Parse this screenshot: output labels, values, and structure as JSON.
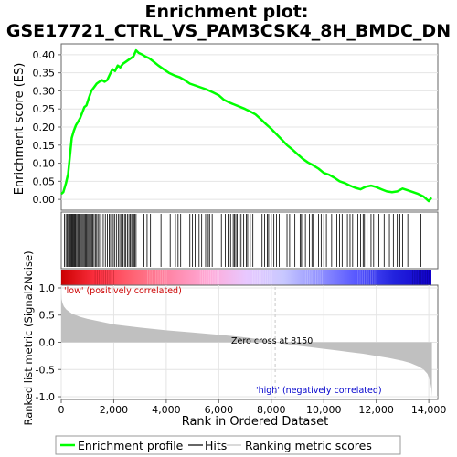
{
  "title": {
    "line1": "Enrichment plot:",
    "line2": "GSE17721_CTRL_VS_PAM3CSK4_8H_BMDC_DN"
  },
  "colors": {
    "enrichment_line": "#00ff00",
    "hits": "#000000",
    "ranking_area": "#c0c0c0",
    "zero_cross_line": "#c8c8c8",
    "grid": "#e4e4e4",
    "positive_label": "#cc0000",
    "negative_label": "#0000cc"
  },
  "chart_data": [
    {
      "type": "line",
      "name": "enrichment-profile",
      "ylabel": "Enrichment score (ES)",
      "xlim": [
        0,
        14500
      ],
      "ylim": [
        -0.03,
        0.43
      ],
      "yticks": [
        0.0,
        0.05,
        0.1,
        0.15,
        0.2,
        0.25,
        0.3,
        0.35,
        0.4
      ],
      "ytick_labels": [
        "0.00",
        "0.05",
        "0.10",
        "0.15",
        "0.20",
        "0.25",
        "0.30",
        "0.35",
        "0.40"
      ],
      "grid": true,
      "x": [
        0,
        80,
        180,
        260,
        330,
        400,
        480,
        560,
        640,
        720,
        800,
        880,
        960,
        1050,
        1150,
        1250,
        1350,
        1450,
        1550,
        1650,
        1750,
        1850,
        1950,
        2050,
        2150,
        2250,
        2350,
        2450,
        2550,
        2650,
        2750,
        2850,
        2950,
        3100,
        3200,
        3350,
        3500,
        3700,
        3900,
        4100,
        4300,
        4500,
        4700,
        4900,
        5100,
        5300,
        5500,
        5650,
        5800,
        6000,
        6200,
        6400,
        6600,
        6800,
        7000,
        7200,
        7400,
        7600,
        7800,
        8000,
        8200,
        8400,
        8600,
        8800,
        9000,
        9200,
        9400,
        9600,
        9800,
        10000,
        10200,
        10400,
        10600,
        10800,
        11000,
        11200,
        11400,
        11600,
        11800,
        12000,
        12200,
        12400,
        12600,
        12800,
        13000,
        13200,
        13400,
        13600,
        13800,
        14000,
        14100
      ],
      "y": [
        0.015,
        0.02,
        0.045,
        0.07,
        0.12,
        0.17,
        0.19,
        0.205,
        0.215,
        0.225,
        0.24,
        0.255,
        0.26,
        0.28,
        0.3,
        0.31,
        0.32,
        0.325,
        0.33,
        0.325,
        0.33,
        0.345,
        0.36,
        0.355,
        0.37,
        0.365,
        0.375,
        0.38,
        0.385,
        0.39,
        0.395,
        0.412,
        0.405,
        0.4,
        0.395,
        0.39,
        0.382,
        0.37,
        0.36,
        0.35,
        0.343,
        0.338,
        0.33,
        0.32,
        0.315,
        0.31,
        0.305,
        0.3,
        0.295,
        0.288,
        0.275,
        0.268,
        0.262,
        0.256,
        0.25,
        0.243,
        0.235,
        0.222,
        0.208,
        0.195,
        0.18,
        0.165,
        0.15,
        0.138,
        0.125,
        0.112,
        0.102,
        0.094,
        0.085,
        0.073,
        0.068,
        0.06,
        0.05,
        0.045,
        0.038,
        0.032,
        0.028,
        0.035,
        0.038,
        0.034,
        0.028,
        0.022,
        0.02,
        0.022,
        0.03,
        0.025,
        0.02,
        0.015,
        0.008,
        -0.005,
        0.005
      ]
    },
    {
      "type": "scatter",
      "name": "hits",
      "ylim": [
        0,
        1
      ],
      "x": [
        120,
        180,
        230,
        270,
        310,
        345,
        380,
        410,
        440,
        470,
        500,
        530,
        560,
        600,
        640,
        680,
        720,
        760,
        800,
        840,
        880,
        920,
        960,
        1000,
        1040,
        1080,
        1120,
        1160,
        1200,
        1250,
        1300,
        1350,
        1400,
        1460,
        1520,
        1600,
        1680,
        1760,
        1830,
        1880,
        1930,
        1980,
        2030,
        2100,
        2170,
        2230,
        2290,
        2350,
        2410,
        2460,
        2520,
        2580,
        2630,
        2680,
        2720,
        2760,
        2800,
        2850,
        3150,
        3270,
        3400,
        3800,
        4150,
        4350,
        4450,
        4550,
        4900,
        5000,
        5100,
        5250,
        5350,
        5500,
        5600,
        5650,
        5750,
        6100,
        6250,
        6350,
        6450,
        6550,
        6600,
        6650,
        6700,
        6780,
        6850,
        6950,
        7050,
        7100,
        7200,
        7300,
        7650,
        7750,
        7850,
        7900,
        8000,
        8100,
        8200,
        8300,
        8600,
        8700,
        8900,
        9100,
        9150,
        9200,
        9300,
        9450,
        9550,
        9600,
        9800,
        9900,
        10000,
        10100,
        10300,
        10500,
        10600,
        10700,
        10900,
        11000,
        11100,
        11300,
        11400,
        11500,
        11550,
        11650,
        11800,
        11900,
        12100,
        12300,
        12500,
        12650,
        12800,
        12900,
        13000,
        13200,
        13700,
        14050
      ]
    },
    {
      "type": "area",
      "name": "ranking-metric",
      "xlabel": "Rank in Ordered Dataset",
      "ylabel": "Ranked list metric (Signal2Noise)",
      "xlim": [
        0,
        14500
      ],
      "ylim": [
        -1.05,
        1.05
      ],
      "xticks": [
        0,
        2000,
        4000,
        6000,
        8000,
        10000,
        12000,
        14000
      ],
      "xtick_labels": [
        "0",
        "2,000",
        "4,000",
        "6,000",
        "8,000",
        "10,000",
        "12,000",
        "14,000"
      ],
      "yticks": [
        -1.0,
        -0.5,
        0.0,
        0.5,
        1.0
      ],
      "ytick_labels": [
        "-1.0",
        "-0.5",
        "0.0",
        "0.5",
        "1.0"
      ],
      "x": [
        0,
        10,
        50,
        100,
        200,
        400,
        700,
        1000,
        1500,
        2000,
        3000,
        4000,
        5000,
        6000,
        7000,
        7600,
        8000,
        8150,
        8500,
        9000,
        9500,
        10000,
        10500,
        11000,
        11500,
        12000,
        12500,
        13000,
        13300,
        13600,
        13800,
        13950,
        14050,
        14100,
        14120
      ],
      "y": [
        0.9,
        0.8,
        0.72,
        0.66,
        0.6,
        0.53,
        0.47,
        0.43,
        0.38,
        0.33,
        0.27,
        0.22,
        0.18,
        0.14,
        0.09,
        0.05,
        0.02,
        0.0,
        -0.03,
        -0.06,
        -0.09,
        -0.12,
        -0.15,
        -0.18,
        -0.21,
        -0.25,
        -0.29,
        -0.34,
        -0.38,
        -0.44,
        -0.5,
        -0.58,
        -0.72,
        -0.85,
        -1.0
      ]
    }
  ],
  "heatmap_bar": {
    "stops": [
      "#cc0000",
      "#ff3344",
      "#ff6677",
      "#ff88aa",
      "#ffaad8",
      "#e8c8ff",
      "#c8c8ff",
      "#9090ff",
      "#5555ff",
      "#2222dd",
      "#1100cc"
    ]
  },
  "annotations": {
    "positive": "'low' (positively correlated)",
    "negative": "'high' (negatively correlated)",
    "zero_cross": "Zero cross at 8150",
    "zero_cross_rank": 8150
  },
  "legend": {
    "items": [
      {
        "label": "Enrichment profile",
        "color": "#00ff00"
      },
      {
        "label": "Hits",
        "color": "#000000"
      },
      {
        "label": "Ranking metric scores",
        "color": "#c0c0c0"
      }
    ]
  }
}
